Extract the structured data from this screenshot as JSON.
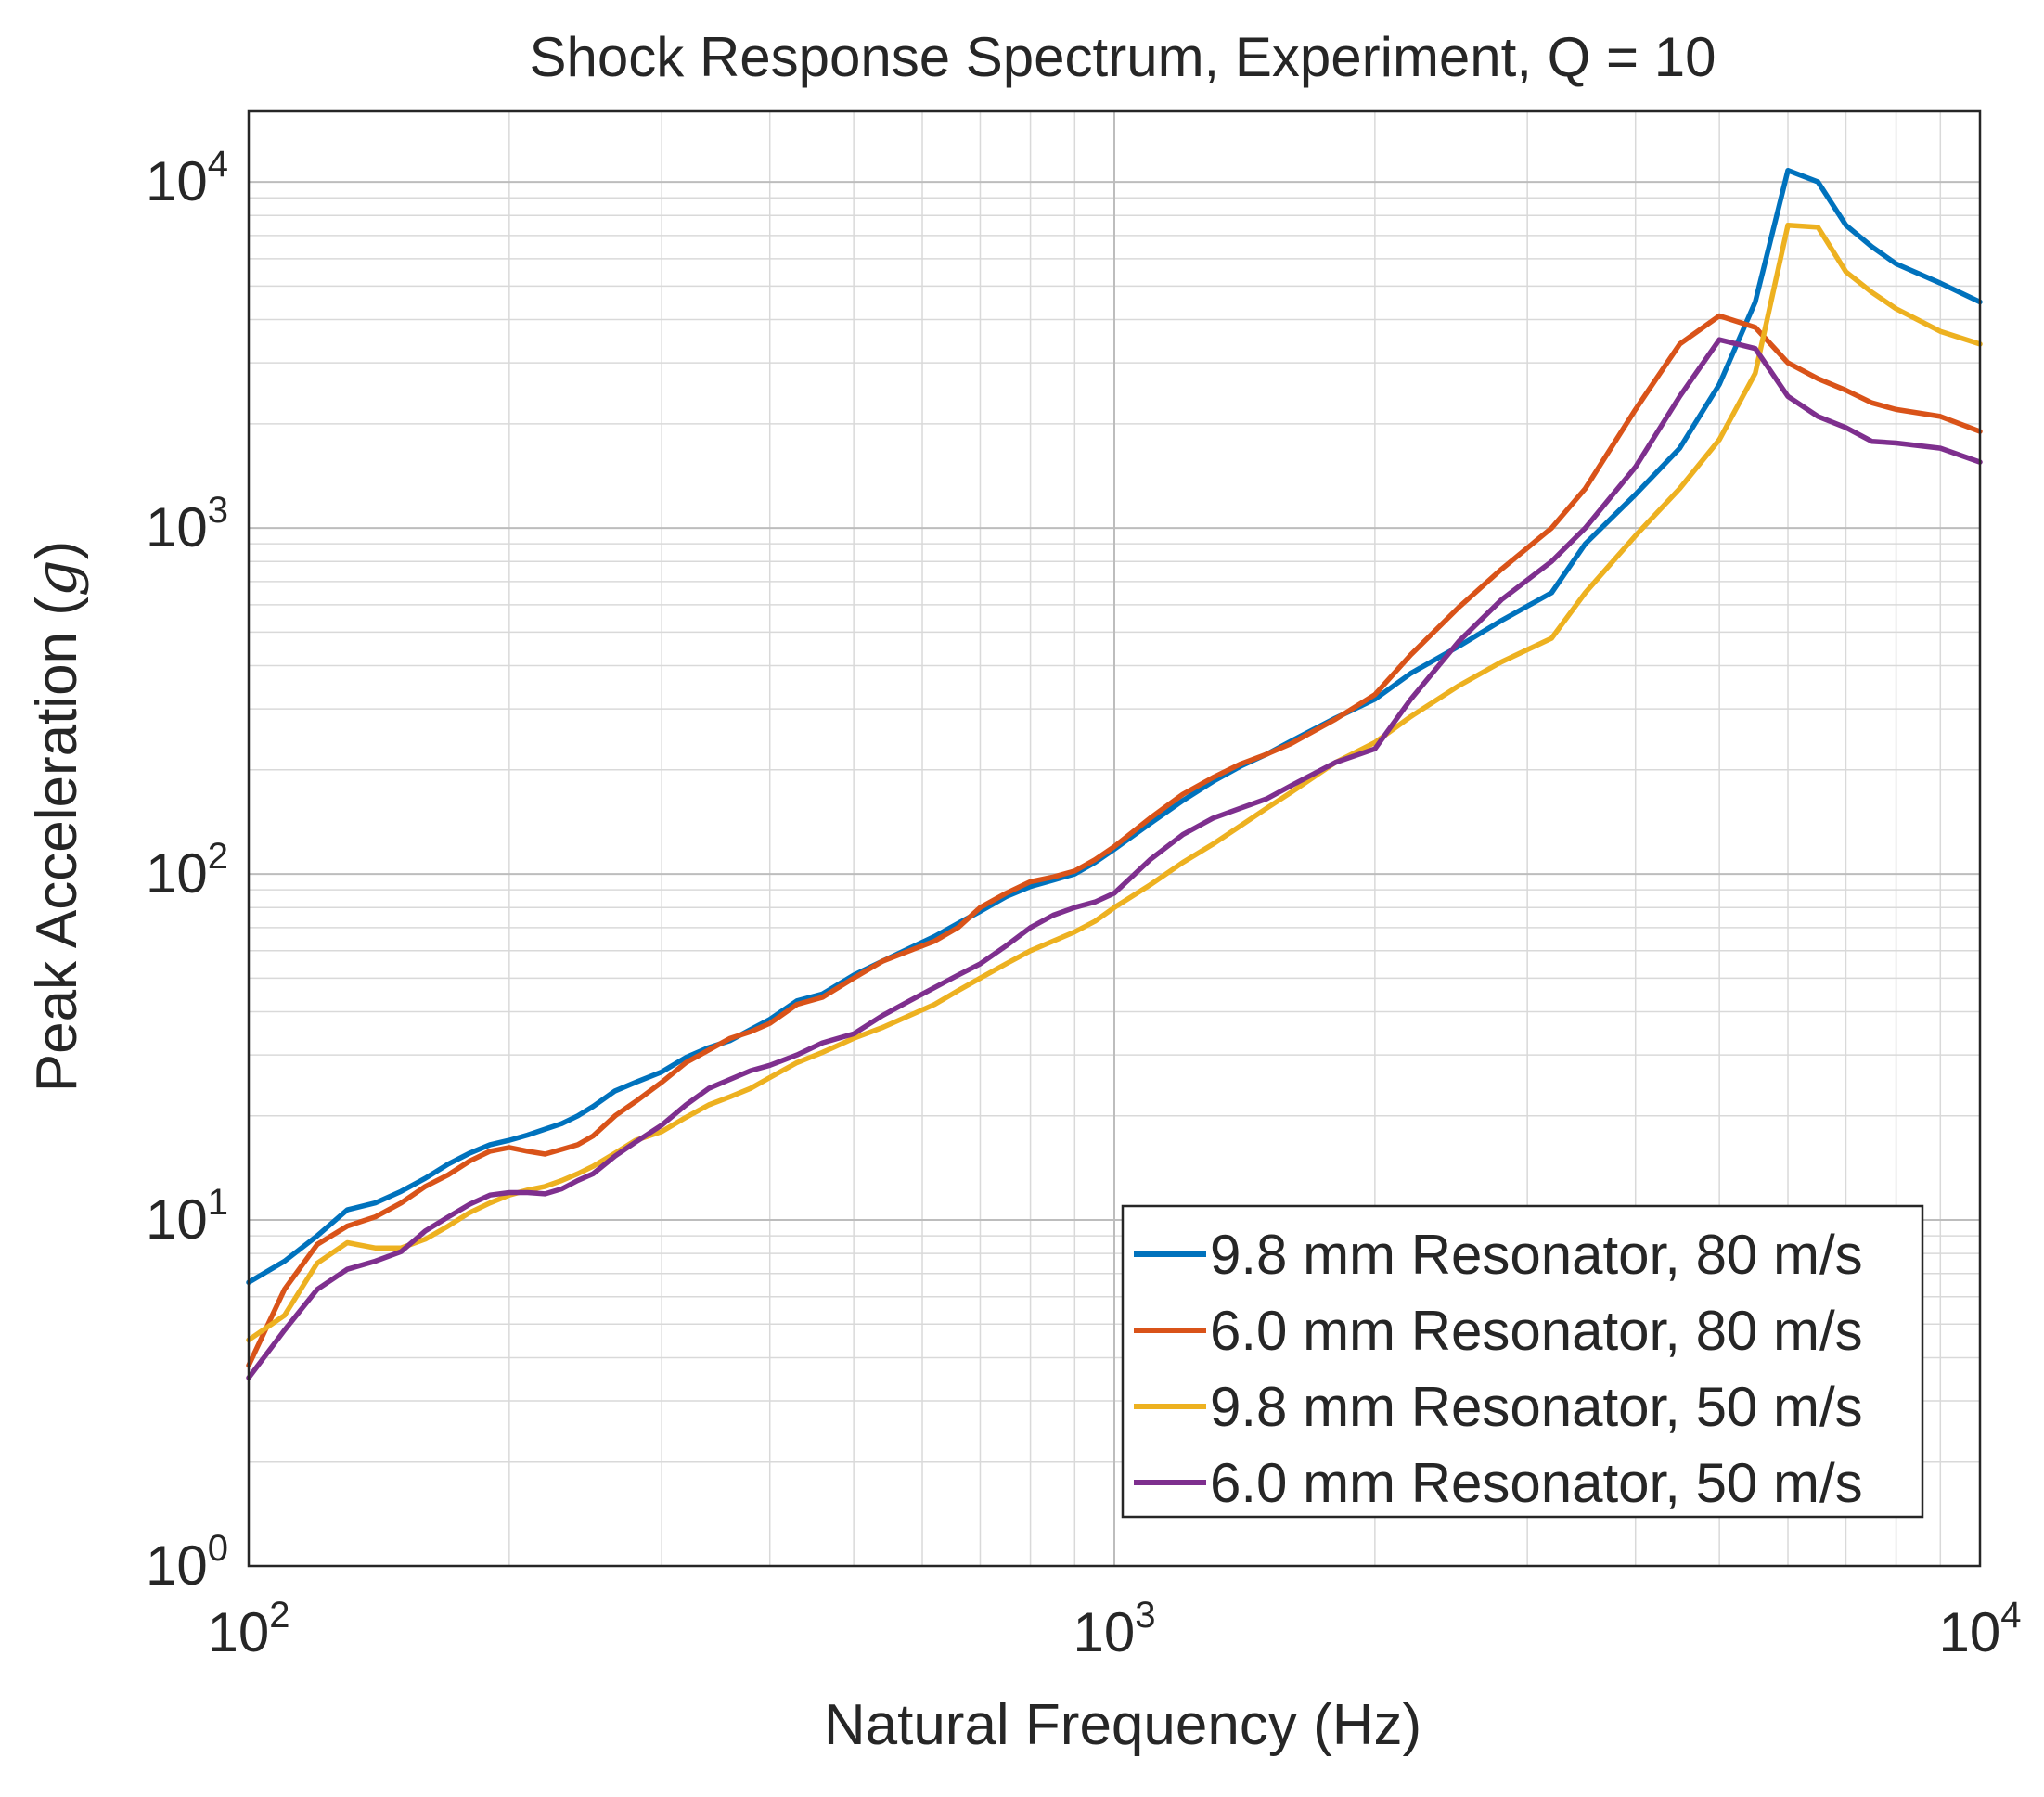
{
  "chart_data": {
    "type": "line",
    "title": "Shock Response Spectrum, Experiment, Q = 10",
    "xlabel": "Natural Frequency (Hz)",
    "ylabel_main": "Peak Acceleration (",
    "ylabel_symbol": "g",
    "ylabel_close": ")",
    "xscale": "log",
    "yscale": "log",
    "xlim": [
      100,
      10000
    ],
    "ylim": [
      1,
      16000
    ],
    "grid": true,
    "minor_grid": true,
    "legend_position": "bottom-right",
    "x_ticks": [
      {
        "value": 100,
        "base": "10",
        "exp": "2"
      },
      {
        "value": 1000,
        "base": "10",
        "exp": "3"
      },
      {
        "value": 10000,
        "base": "10",
        "exp": "4"
      }
    ],
    "y_ticks": [
      {
        "value": 1,
        "base": "10",
        "exp": "0"
      },
      {
        "value": 10,
        "base": "10",
        "exp": "1"
      },
      {
        "value": 100,
        "base": "10",
        "exp": "2"
      },
      {
        "value": 1000,
        "base": "10",
        "exp": "3"
      },
      {
        "value": 10000,
        "base": "10",
        "exp": "4"
      }
    ],
    "series": [
      {
        "name": "9.8 mm Resonator, 80 m/s",
        "color": "#0072BD",
        "x": [
          100,
          110,
          120,
          130,
          140,
          150,
          160,
          170,
          180,
          190,
          200,
          210,
          220,
          230,
          240,
          250,
          265,
          280,
          300,
          320,
          340,
          360,
          380,
          400,
          430,
          460,
          500,
          540,
          580,
          620,
          660,
          700,
          750,
          800,
          850,
          900,
          950,
          1000,
          1100,
          1200,
          1300,
          1400,
          1500,
          1600,
          1800,
          2000,
          2200,
          2500,
          2800,
          3200,
          3500,
          4000,
          4500,
          5000,
          5500,
          6000,
          6500,
          7000,
          7500,
          8000,
          9000,
          10000
        ],
        "y": [
          6.6,
          7.6,
          9.0,
          10.7,
          11.2,
          12.1,
          13.2,
          14.5,
          15.6,
          16.5,
          17.0,
          17.6,
          18.3,
          19.0,
          20.0,
          21.3,
          23.6,
          25.0,
          26.8,
          29.5,
          31.5,
          33.0,
          35.5,
          38.0,
          43.0,
          45.0,
          51.0,
          56.0,
          61.0,
          66.0,
          72.0,
          78.0,
          86.0,
          92.0,
          96.0,
          100.0,
          108.0,
          118.0,
          140.0,
          163.0,
          185.0,
          205.0,
          222.0,
          242.0,
          282.0,
          320.0,
          380.0,
          455.0,
          540.0,
          650.0,
          900.0,
          1250.0,
          1700.0,
          2600.0,
          4500.0,
          10800.0,
          10000.0,
          7500.0,
          6500.0,
          5800.0,
          5100.0,
          4500.0
        ]
      },
      {
        "name": "6.0 mm Resonator, 80 m/s",
        "color": "#D95319",
        "x": [
          100,
          110,
          120,
          130,
          140,
          150,
          160,
          170,
          180,
          190,
          200,
          210,
          220,
          230,
          240,
          250,
          265,
          280,
          300,
          320,
          340,
          360,
          380,
          400,
          430,
          460,
          500,
          540,
          580,
          620,
          660,
          700,
          750,
          800,
          850,
          900,
          950,
          1000,
          1100,
          1200,
          1300,
          1400,
          1500,
          1600,
          1800,
          2000,
          2200,
          2500,
          2800,
          3200,
          3500,
          4000,
          4500,
          5000,
          5500,
          6000,
          6500,
          7000,
          7500,
          8000,
          9000,
          10000
        ],
        "y": [
          3.8,
          6.3,
          8.5,
          9.6,
          10.2,
          11.2,
          12.5,
          13.5,
          14.8,
          15.8,
          16.2,
          15.8,
          15.5,
          16.0,
          16.5,
          17.5,
          20.0,
          22.0,
          25.0,
          28.5,
          31.0,
          33.5,
          35.0,
          37.0,
          42.0,
          44.0,
          50.0,
          56.0,
          60.0,
          64.0,
          70.0,
          80.0,
          88.0,
          95.0,
          98.0,
          102.0,
          110.0,
          120.0,
          145.0,
          170.0,
          190.0,
          208.0,
          222.0,
          238.0,
          280.0,
          330.0,
          430.0,
          590.0,
          760.0,
          1000.0,
          1300.0,
          2200.0,
          3400.0,
          4100.0,
          3800.0,
          3000.0,
          2700.0,
          2500.0,
          2300.0,
          2200.0,
          2100.0,
          1900.0
        ]
      },
      {
        "name": "9.8 mm Resonator, 50 m/s",
        "color": "#EDB120",
        "x": [
          100,
          110,
          120,
          130,
          140,
          150,
          160,
          170,
          180,
          190,
          200,
          210,
          220,
          230,
          240,
          250,
          265,
          280,
          300,
          320,
          340,
          360,
          380,
          400,
          430,
          460,
          500,
          540,
          580,
          620,
          660,
          700,
          750,
          800,
          850,
          900,
          950,
          1000,
          1100,
          1200,
          1300,
          1400,
          1500,
          1600,
          1800,
          2000,
          2200,
          2500,
          2800,
          3200,
          3500,
          4000,
          4500,
          5000,
          5500,
          6000,
          6500,
          7000,
          7500,
          8000,
          9000,
          10000
        ],
        "y": [
          4.5,
          5.3,
          7.5,
          8.6,
          8.3,
          8.3,
          8.8,
          9.6,
          10.5,
          11.2,
          11.8,
          12.2,
          12.5,
          13.0,
          13.6,
          14.3,
          15.6,
          17.0,
          18.0,
          19.8,
          21.5,
          22.7,
          24.0,
          25.8,
          28.5,
          30.5,
          33.5,
          36.0,
          39.0,
          42.0,
          46.0,
          50.0,
          55.0,
          60.0,
          64.0,
          68.0,
          73.0,
          80.0,
          93.0,
          108.0,
          122.0,
          138.0,
          155.0,
          172.0,
          210.0,
          240.0,
          285.0,
          350.0,
          410.0,
          480.0,
          650.0,
          950.0,
          1300.0,
          1800.0,
          2800.0,
          7500.0,
          7400.0,
          5500.0,
          4800.0,
          4300.0,
          3700.0,
          3400.0
        ]
      },
      {
        "name": "6.0 mm Resonator, 50 m/s",
        "color": "#7E2F8E",
        "x": [
          100,
          110,
          120,
          130,
          140,
          150,
          160,
          170,
          180,
          190,
          200,
          210,
          220,
          230,
          240,
          250,
          265,
          280,
          300,
          320,
          340,
          360,
          380,
          400,
          430,
          460,
          500,
          540,
          580,
          620,
          660,
          700,
          750,
          800,
          850,
          900,
          950,
          1000,
          1100,
          1200,
          1300,
          1400,
          1500,
          1600,
          1800,
          2000,
          2200,
          2500,
          2800,
          3200,
          3500,
          4000,
          4500,
          5000,
          5500,
          6000,
          6500,
          7000,
          7500,
          8000,
          9000,
          10000
        ],
        "y": [
          3.5,
          4.8,
          6.3,
          7.2,
          7.6,
          8.1,
          9.3,
          10.2,
          11.1,
          11.8,
          12.0,
          12.0,
          11.9,
          12.3,
          13.0,
          13.6,
          15.3,
          16.8,
          18.8,
          21.5,
          24.0,
          25.5,
          27.0,
          28.0,
          30.0,
          32.5,
          34.5,
          39.0,
          43.0,
          47.0,
          51.0,
          55.0,
          62.0,
          70.0,
          76.0,
          80.0,
          83.0,
          88.0,
          110.0,
          130.0,
          145.0,
          155.0,
          165.0,
          180.0,
          210.0,
          230.0,
          320.0,
          470.0,
          620.0,
          800.0,
          1000.0,
          1500.0,
          2400.0,
          3500.0,
          3300.0,
          2400.0,
          2100.0,
          1950.0,
          1780.0,
          1760.0,
          1700.0,
          1550.0
        ]
      }
    ]
  }
}
